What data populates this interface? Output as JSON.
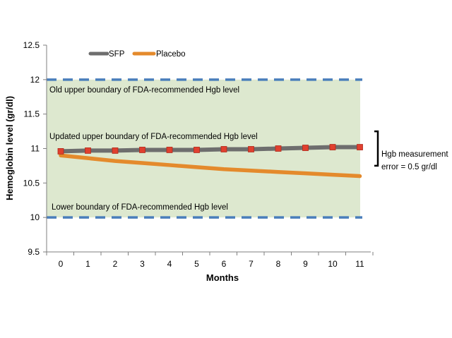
{
  "chart_data": {
    "type": "line",
    "xlabel": "Months",
    "ylabel": "Hemoglobin level (gr/dl)",
    "ylim": [
      9.5,
      12.5
    ],
    "yticks": [
      "9.5",
      "10",
      "10.5",
      "11",
      "11.5",
      "12",
      "12.5"
    ],
    "x": [
      0,
      1,
      2,
      3,
      4,
      5,
      6,
      7,
      8,
      9,
      10,
      11
    ],
    "xtick_labels": [
      "0",
      "1",
      "2",
      "3",
      "4",
      "5",
      "6",
      "7",
      "8",
      "9",
      "10",
      "11"
    ],
    "series": [
      {
        "name": "SFP",
        "color": "#6e6e6e",
        "marker_color": "#e0402f",
        "values": [
          10.96,
          10.97,
          10.97,
          10.98,
          10.98,
          10.98,
          10.99,
          10.99,
          11.0,
          11.01,
          11.02,
          11.02
        ]
      },
      {
        "name": "Placebo",
        "color": "#e48a2c",
        "values": [
          10.9,
          10.86,
          10.82,
          10.79,
          10.76,
          10.73,
          10.7,
          10.68,
          10.66,
          10.64,
          10.62,
          10.6
        ]
      }
    ],
    "band": {
      "range": [
        10,
        12
      ],
      "color": "#dde8cf"
    },
    "reference_lines": [
      {
        "y": 12,
        "label": "Old upper boundary of FDA-recommended  Hgb level",
        "style": "dashed",
        "color": "#4a7ebb"
      },
      {
        "y": 11,
        "label": "Updated upper boundary of FDA-recommended  Hgb level",
        "style": "none"
      },
      {
        "y": 10,
        "label": "Lower boundary of FDA-recommended  Hgb level",
        "style": "dashed",
        "color": "#4a7ebb"
      }
    ],
    "annotation": {
      "lines": [
        "Hgb measurement",
        "error = 0.5 gr/dl"
      ],
      "range": [
        10.75,
        11.25
      ]
    },
    "legend_position": "top-left",
    "grid": false
  }
}
